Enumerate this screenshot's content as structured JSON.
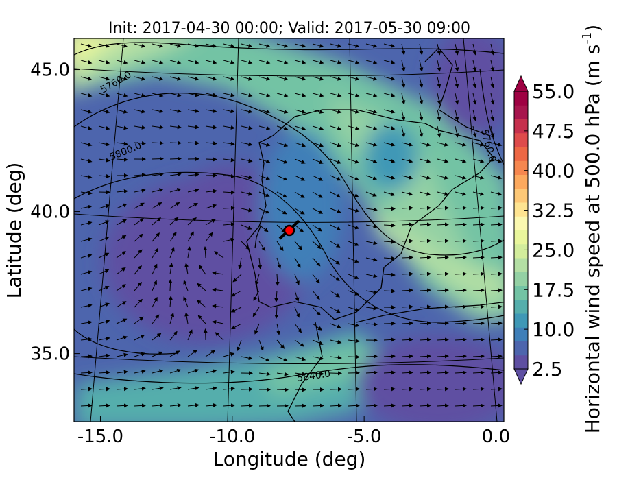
{
  "chart_data": {
    "type": "heatmap",
    "title": "Init: 2017-04-30 00:00; Valid: 2017-05-30 09:00",
    "xlabel": "Longitude (deg)",
    "ylabel": "Latitude (deg)",
    "xlim": [
      -16.0,
      0.3
    ],
    "ylim": [
      32.6,
      46.1
    ],
    "x_ticks": [
      -15.0,
      -10.0,
      -5.0,
      0.0
    ],
    "x_tick_labels": [
      "-15.0",
      "-10.0",
      "-5.0",
      "0.0"
    ],
    "y_ticks": [
      35.0,
      40.0,
      45.0
    ],
    "y_tick_labels": [
      "35.0",
      "40.0",
      "45.0"
    ],
    "colorbar": {
      "label": "Horizontal wind speed at 500.0 hPa (m s$^{-1}$)",
      "label_plain": "Horizontal wind speed at 500.0 hPa (m s",
      "label_sup": "-1",
      "label_close": ")",
      "min": 2.5,
      "max": 55.0,
      "extend": "both",
      "ticks": [
        2.5,
        10.0,
        17.5,
        25.0,
        32.5,
        40.0,
        47.5,
        55.0
      ],
      "tick_labels": [
        "2.5",
        "10.0",
        "17.5",
        "25.0",
        "32.5",
        "40.0",
        "47.5",
        "55.0"
      ],
      "colors": [
        "#5e4fa2",
        "#4d65ad",
        "#3f7fb8",
        "#3f98b6",
        "#55aeac",
        "#73c3a4",
        "#94d1a4",
        "#b4dfa4",
        "#d3ed9c",
        "#e9f69c",
        "#fbf8b0",
        "#fee491",
        "#fdc877",
        "#fca95e",
        "#f6874f",
        "#ed6744",
        "#de4b4b",
        "#c6304d",
        "#a7154d",
        "#9e0142"
      ]
    },
    "contour_labels": [
      {
        "text": "5760.0",
        "lon": -14.3,
        "lat": 44.0,
        "angle": -30
      },
      {
        "text": "5800.0",
        "lon": -13.8,
        "lat": 41.8,
        "angle": -22
      },
      {
        "text": "5840.0",
        "lon": -6.7,
        "lat": 34.0,
        "angle": -8
      },
      {
        "text": "5760.0",
        "lon": -0.2,
        "lat": 42.3,
        "angle": 75
      }
    ],
    "marker": {
      "lon": -7.7,
      "lat": 39.35,
      "color": "#ff0000"
    },
    "grid": true,
    "legend": "none"
  }
}
